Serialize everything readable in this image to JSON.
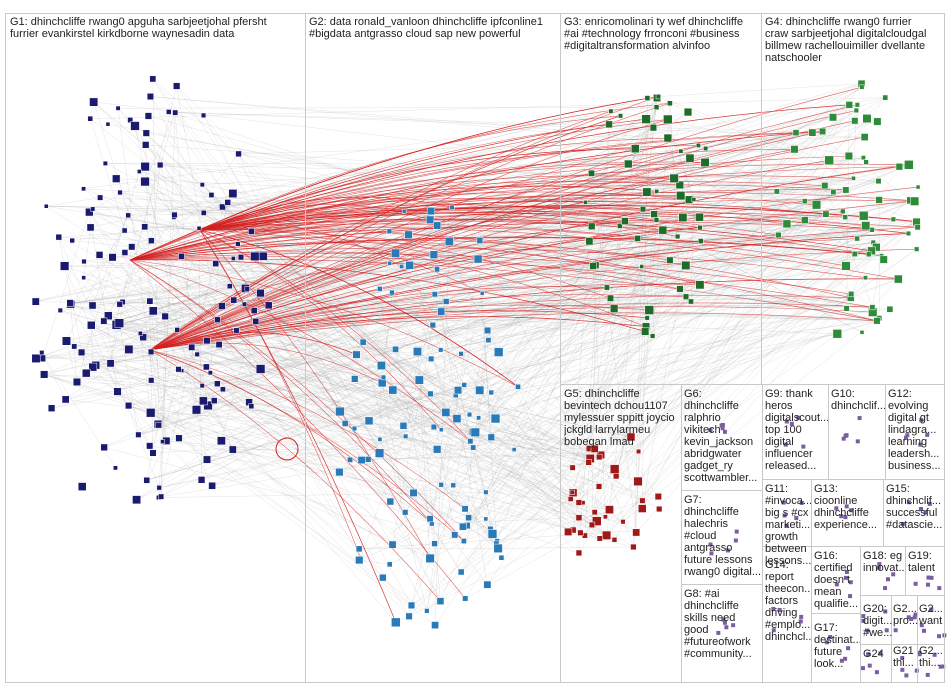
{
  "colors": {
    "background": "#ffffff",
    "box_border": "#c9c9c9",
    "edge_gray": "#9a9a9a",
    "edge_red": "#d42020",
    "G1": "#1a1a6e",
    "G2": "#2a7ab8",
    "G3": "#1e6b2a",
    "G4": "#2e8b3a",
    "G5": "#a01818",
    "G6": "#e6a020",
    "G7": "#6a6a6a",
    "G8": "#8a2a8a",
    "small": "#7a5fa0"
  },
  "groups": [
    {
      "id": "G1",
      "text": "G1: dhinchcliffe rwang0 apguha sarbjeetjohal pfersht\nfurrier evankirstel kirkdborne waynesadin data"
    },
    {
      "id": "G2",
      "text": "G2: data ronald_vanloon dhinchcliffe ipfconline1\n#bigdata antgrasso cloud sap new powerful"
    },
    {
      "id": "G3",
      "text": "G3: enricomolinari ty wef dhinchcliffe\n#ai #technology frronconi #business\n#digitaltransformation alvinfoo"
    },
    {
      "id": "G4",
      "text": "G4: dhinchcliffe rwang0 furrier\ncraw sarbjeetjohal digitalcloudgal\nbillmew rachellouimiller dvellante\nnatschooler"
    },
    {
      "id": "G5",
      "text": "G5: dhinchcliffe\nbevintech dchou1107\nmylessuer sppitt joycio\njckgld larrylarmeu\nbobegan lmau"
    },
    {
      "id": "G6",
      "text": "G6:\ndhinchcliffe\nralphrio\nvikitech\nkevin_jackson\nabridgwater\ngadget_ry\nscottwambler..."
    },
    {
      "id": "G7",
      "text": "G7:\ndhinchcliffe\nhalechris\n#cloud\nantgrasso\nfuture lessons\nrwang0 digital..."
    },
    {
      "id": "G8",
      "text": "G8: #ai\ndhinchcliffe\nskills need\ngood\n#futureofwork\n#community..."
    },
    {
      "id": "G9",
      "text": "G9: thank\nheros\ndigitalscout...\ntop 100\ndigital\ninfluencer\nreleased..."
    },
    {
      "id": "G10",
      "text": "G10:\ndhinchclif..."
    },
    {
      "id": "G12",
      "text": "G12:\nevolving\ndigital gt\nlindagra...\nlearning\nleadersh...\nbusiness..."
    },
    {
      "id": "G11",
      "text": "G11:\n#invoca...\nbig s #cx\nmarketi...\ngrowth\nbetween\nlessons..."
    },
    {
      "id": "G13",
      "text": "G13:\ncioonline\ndhinchcliffe\nexperience..."
    },
    {
      "id": "G15",
      "text": "G15:\ndhinchclif...\nsuccessful\n#datascie..."
    },
    {
      "id": "G16",
      "text": "G16:\ncertified\ndoesn t\nmean\nqualifie..."
    },
    {
      "id": "G18",
      "text": "G18: eg\ninnovat..."
    },
    {
      "id": "G19",
      "text": "G19:\ntalent"
    },
    {
      "id": "G14",
      "text": "G14:\nreport\ntheecon...\nfactors\ndriving\n#emplo...\ndhinchcl..."
    },
    {
      "id": "G20",
      "text": "G20:\ndigit...\n#we..."
    },
    {
      "id": "G21",
      "text": "G2...\npro..."
    },
    {
      "id": "G22",
      "text": "G2...\nwant"
    },
    {
      "id": "G17",
      "text": "G17:\ndestinat...\nfuture\nlook..."
    },
    {
      "id": "G24",
      "text": "G24"
    },
    {
      "id": "G21b",
      "text": "G21\nthi..."
    },
    {
      "id": "G23",
      "text": "G2...\nthi..."
    }
  ]
}
